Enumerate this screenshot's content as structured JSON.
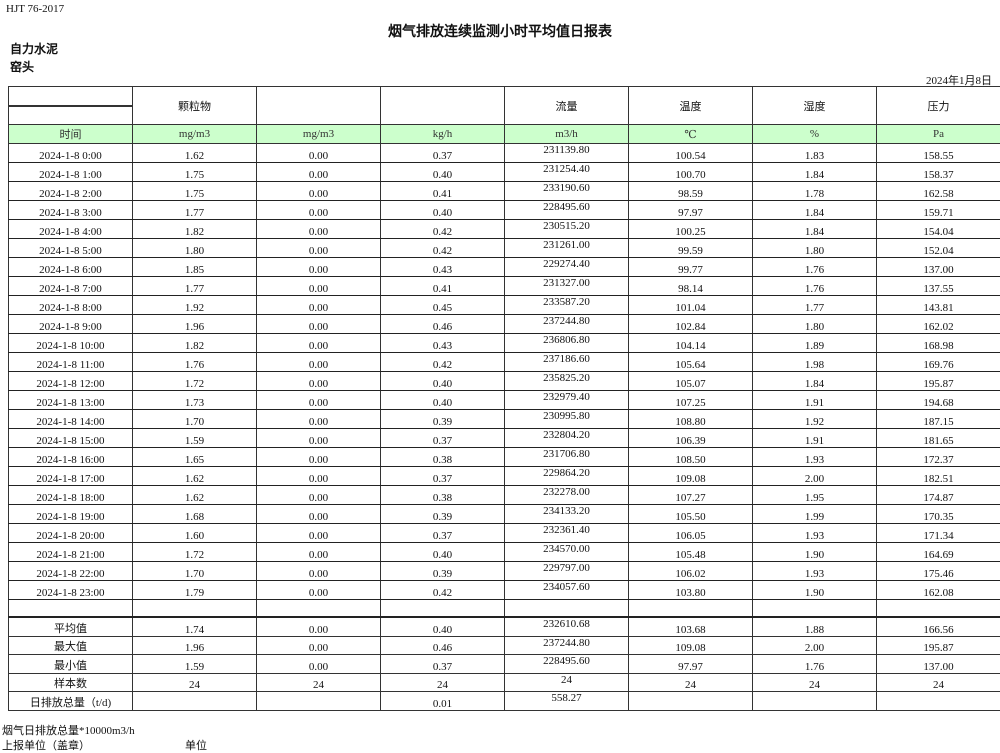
{
  "header": {
    "standard": "HJT  76-2017",
    "title": "烟气排放连续监测小时平均值日报表",
    "company": "自力水泥",
    "unit": "窑头",
    "date": "2024年1月8日"
  },
  "columns": [
    "",
    "颗粒物",
    "",
    "",
    "流量",
    "温度",
    "湿度",
    "压力"
  ],
  "units": [
    "时间",
    "mg/m3",
    "mg/m3",
    "kg/h",
    "m3/h",
    "℃",
    "%",
    "Pa"
  ],
  "rows": [
    [
      "2024-1-8 0:00",
      "1.62",
      "0.00",
      "0.37",
      "231139.80",
      "100.54",
      "1.83",
      "158.55"
    ],
    [
      "2024-1-8 1:00",
      "1.75",
      "0.00",
      "0.40",
      "231254.40",
      "100.70",
      "1.84",
      "158.37"
    ],
    [
      "2024-1-8 2:00",
      "1.75",
      "0.00",
      "0.41",
      "233190.60",
      "98.59",
      "1.78",
      "162.58"
    ],
    [
      "2024-1-8 3:00",
      "1.77",
      "0.00",
      "0.40",
      "228495.60",
      "97.97",
      "1.84",
      "159.71"
    ],
    [
      "2024-1-8 4:00",
      "1.82",
      "0.00",
      "0.42",
      "230515.20",
      "100.25",
      "1.84",
      "154.04"
    ],
    [
      "2024-1-8 5:00",
      "1.80",
      "0.00",
      "0.42",
      "231261.00",
      "99.59",
      "1.80",
      "152.04"
    ],
    [
      "2024-1-8 6:00",
      "1.85",
      "0.00",
      "0.43",
      "229274.40",
      "99.77",
      "1.76",
      "137.00"
    ],
    [
      "2024-1-8 7:00",
      "1.77",
      "0.00",
      "0.41",
      "231327.00",
      "98.14",
      "1.76",
      "137.55"
    ],
    [
      "2024-1-8 8:00",
      "1.92",
      "0.00",
      "0.45",
      "233587.20",
      "101.04",
      "1.77",
      "143.81"
    ],
    [
      "2024-1-8 9:00",
      "1.96",
      "0.00",
      "0.46",
      "237244.80",
      "102.84",
      "1.80",
      "162.02"
    ],
    [
      "2024-1-8 10:00",
      "1.82",
      "0.00",
      "0.43",
      "236806.80",
      "104.14",
      "1.89",
      "168.98"
    ],
    [
      "2024-1-8 11:00",
      "1.76",
      "0.00",
      "0.42",
      "237186.60",
      "105.64",
      "1.98",
      "169.76"
    ],
    [
      "2024-1-8 12:00",
      "1.72",
      "0.00",
      "0.40",
      "235825.20",
      "105.07",
      "1.84",
      "195.87"
    ],
    [
      "2024-1-8 13:00",
      "1.73",
      "0.00",
      "0.40",
      "232979.40",
      "107.25",
      "1.91",
      "194.68"
    ],
    [
      "2024-1-8 14:00",
      "1.70",
      "0.00",
      "0.39",
      "230995.80",
      "108.80",
      "1.92",
      "187.15"
    ],
    [
      "2024-1-8 15:00",
      "1.59",
      "0.00",
      "0.37",
      "232804.20",
      "106.39",
      "1.91",
      "181.65"
    ],
    [
      "2024-1-8 16:00",
      "1.65",
      "0.00",
      "0.38",
      "231706.80",
      "108.50",
      "1.93",
      "172.37"
    ],
    [
      "2024-1-8 17:00",
      "1.62",
      "0.00",
      "0.37",
      "229864.20",
      "109.08",
      "2.00",
      "182.51"
    ],
    [
      "2024-1-8 18:00",
      "1.62",
      "0.00",
      "0.38",
      "232278.00",
      "107.27",
      "1.95",
      "174.87"
    ],
    [
      "2024-1-8 19:00",
      "1.68",
      "0.00",
      "0.39",
      "234133.20",
      "105.50",
      "1.99",
      "170.35"
    ],
    [
      "2024-1-8 20:00",
      "1.60",
      "0.00",
      "0.37",
      "232361.40",
      "106.05",
      "1.93",
      "171.34"
    ],
    [
      "2024-1-8 21:00",
      "1.72",
      "0.00",
      "0.40",
      "234570.00",
      "105.48",
      "1.90",
      "164.69"
    ],
    [
      "2024-1-8 22:00",
      "1.70",
      "0.00",
      "0.39",
      "229797.00",
      "106.02",
      "1.93",
      "175.46"
    ],
    [
      "2024-1-8 23:00",
      "1.79",
      "0.00",
      "0.42",
      "234057.60",
      "103.80",
      "1.90",
      "162.08"
    ]
  ],
  "summary": [
    [
      "平均值",
      "1.74",
      "0.00",
      "0.40",
      "232610.68",
      "103.68",
      "1.88",
      "166.56"
    ],
    [
      "最大值",
      "1.96",
      "0.00",
      "0.46",
      "237244.80",
      "109.08",
      "2.00",
      "195.87"
    ],
    [
      "最小值",
      "1.59",
      "0.00",
      "0.37",
      "228495.60",
      "97.97",
      "1.76",
      "137.00"
    ],
    [
      "样本数",
      "24",
      "24",
      "24",
      "24",
      "24",
      "24",
      "24"
    ],
    [
      "日排放总量（t/d)",
      "",
      "",
      "0.01",
      "558.27",
      "",
      "",
      ""
    ]
  ],
  "footer": {
    "note": "烟气日排放总量*10000m3/h",
    "reporter_label": "上报单位（盖章）",
    "reporter_value": "单位"
  },
  "colors": {
    "unit_row_bg": "#ccffcc"
  }
}
